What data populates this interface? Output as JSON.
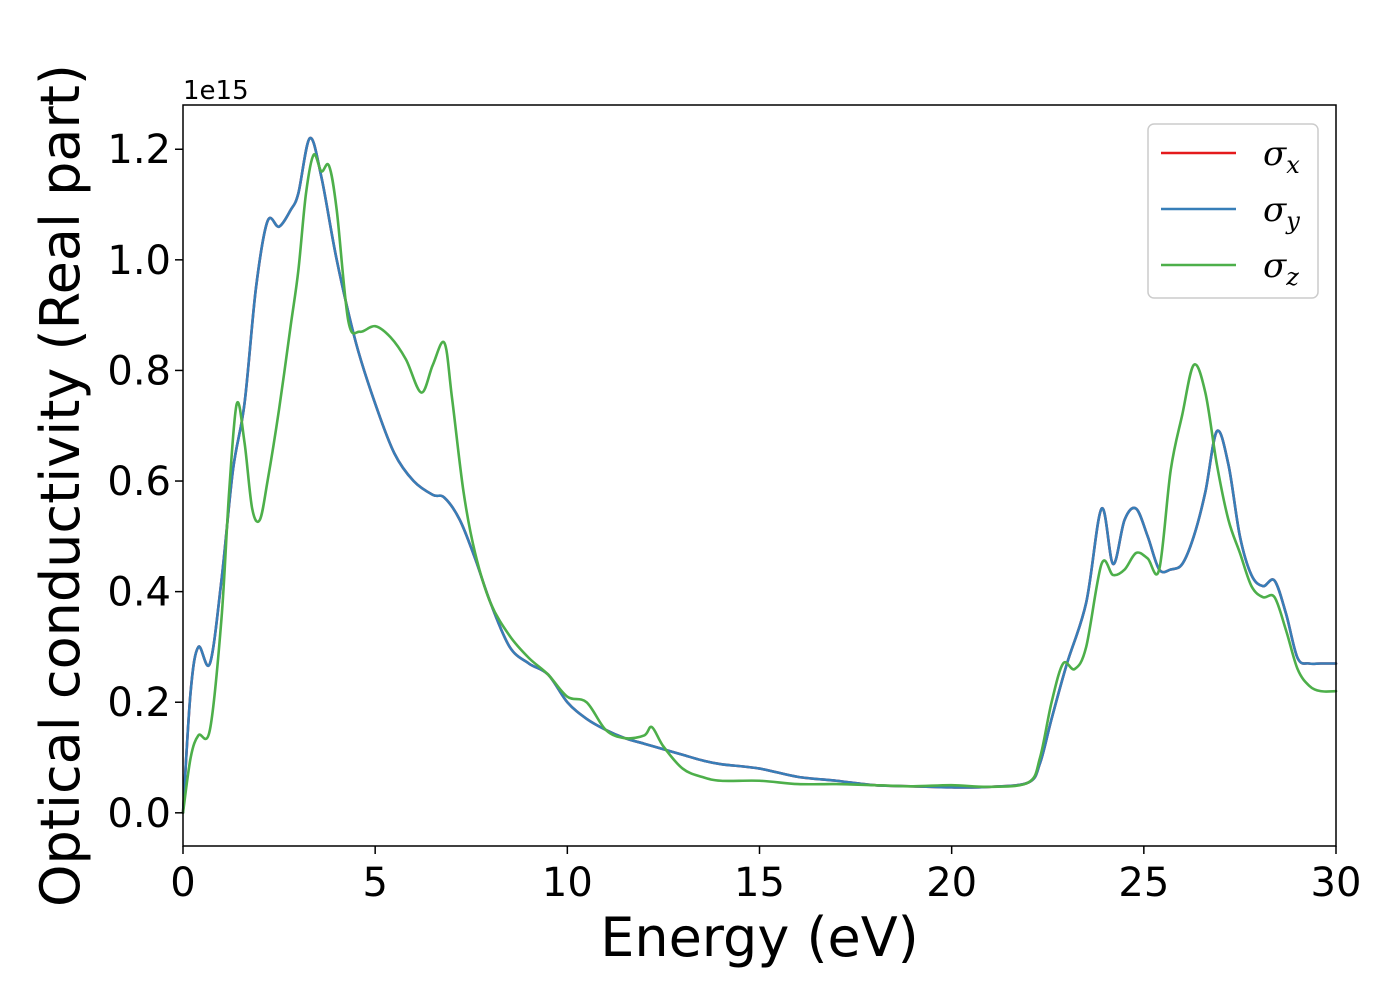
{
  "chart_data": {
    "type": "line",
    "xlabel": "Energy (eV)",
    "ylabel": "Optical conductivity (Real part)",
    "y_offset_text": "1e15",
    "y_scale": 1000000000000000.0,
    "xlim": [
      0,
      30
    ],
    "ylim": [
      -0.06,
      1.28
    ],
    "x_ticks": [
      0,
      5,
      10,
      15,
      20,
      25,
      30
    ],
    "x_tick_labels": [
      "0",
      "5",
      "10",
      "15",
      "20",
      "25",
      "30"
    ],
    "y_ticks": [
      0.0,
      0.2,
      0.4,
      0.6,
      0.8,
      1.0,
      1.2
    ],
    "y_tick_labels": [
      "0.0",
      "0.2",
      "0.4",
      "0.6",
      "0.8",
      "1.0",
      "1.2"
    ],
    "grid": false,
    "legend_position": "top-right",
    "series": [
      {
        "name": "σx",
        "symbol": "σ",
        "subscript": "x",
        "color": "#e41a1c",
        "x": [
          0,
          0.2,
          0.4,
          0.7,
          1.0,
          1.3,
          1.6,
          1.9,
          2.2,
          2.5,
          2.8,
          3.0,
          3.3,
          3.6,
          4.0,
          4.5,
          5.0,
          5.5,
          6.0,
          6.5,
          6.8,
          7.2,
          7.6,
          8.0,
          8.5,
          9.0,
          9.5,
          10.0,
          10.5,
          11.0,
          11.5,
          12.0,
          12.5,
          13.0,
          13.5,
          14.0,
          15.0,
          16.0,
          17.0,
          18.0,
          19.0,
          20.0,
          21.0,
          22.0,
          22.3,
          22.6,
          23.0,
          23.5,
          23.9,
          24.2,
          24.5,
          24.8,
          25.1,
          25.4,
          25.7,
          26.0,
          26.3,
          26.6,
          26.9,
          27.2,
          27.5,
          27.8,
          28.1,
          28.4,
          28.7,
          29.0,
          29.3,
          29.6,
          30.0
        ],
        "y": [
          0.0,
          0.22,
          0.3,
          0.27,
          0.42,
          0.62,
          0.74,
          0.95,
          1.07,
          1.06,
          1.09,
          1.12,
          1.22,
          1.15,
          1.0,
          0.85,
          0.74,
          0.65,
          0.6,
          0.575,
          0.57,
          0.53,
          0.46,
          0.38,
          0.3,
          0.27,
          0.25,
          0.2,
          0.17,
          0.15,
          0.135,
          0.125,
          0.115,
          0.105,
          0.095,
          0.088,
          0.08,
          0.065,
          0.058,
          0.05,
          0.048,
          0.046,
          0.047,
          0.055,
          0.09,
          0.17,
          0.27,
          0.38,
          0.55,
          0.45,
          0.53,
          0.55,
          0.5,
          0.44,
          0.44,
          0.45,
          0.5,
          0.58,
          0.69,
          0.63,
          0.5,
          0.43,
          0.41,
          0.42,
          0.36,
          0.28,
          0.27,
          0.27,
          0.27
        ]
      },
      {
        "name": "σy",
        "symbol": "σ",
        "subscript": "y",
        "color": "#377eb8",
        "x": [
          0,
          0.2,
          0.4,
          0.7,
          1.0,
          1.3,
          1.6,
          1.9,
          2.2,
          2.5,
          2.8,
          3.0,
          3.3,
          3.6,
          4.0,
          4.5,
          5.0,
          5.5,
          6.0,
          6.5,
          6.8,
          7.2,
          7.6,
          8.0,
          8.5,
          9.0,
          9.5,
          10.0,
          10.5,
          11.0,
          11.5,
          12.0,
          12.5,
          13.0,
          13.5,
          14.0,
          15.0,
          16.0,
          17.0,
          18.0,
          19.0,
          20.0,
          21.0,
          22.0,
          22.3,
          22.6,
          23.0,
          23.5,
          23.9,
          24.2,
          24.5,
          24.8,
          25.1,
          25.4,
          25.7,
          26.0,
          26.3,
          26.6,
          26.9,
          27.2,
          27.5,
          27.8,
          28.1,
          28.4,
          28.7,
          29.0,
          29.3,
          29.6,
          30.0
        ],
        "y": [
          0.0,
          0.22,
          0.3,
          0.27,
          0.42,
          0.62,
          0.74,
          0.95,
          1.07,
          1.06,
          1.09,
          1.12,
          1.22,
          1.15,
          1.0,
          0.85,
          0.74,
          0.65,
          0.6,
          0.575,
          0.57,
          0.53,
          0.46,
          0.38,
          0.3,
          0.27,
          0.25,
          0.2,
          0.17,
          0.15,
          0.135,
          0.125,
          0.115,
          0.105,
          0.095,
          0.088,
          0.08,
          0.065,
          0.058,
          0.05,
          0.048,
          0.046,
          0.047,
          0.055,
          0.09,
          0.17,
          0.27,
          0.38,
          0.55,
          0.45,
          0.53,
          0.55,
          0.5,
          0.44,
          0.44,
          0.45,
          0.5,
          0.58,
          0.69,
          0.63,
          0.5,
          0.43,
          0.41,
          0.42,
          0.36,
          0.28,
          0.27,
          0.27,
          0.27
        ]
      },
      {
        "name": "σz",
        "symbol": "σ",
        "subscript": "z",
        "color": "#4daf4a",
        "x": [
          0,
          0.2,
          0.4,
          0.7,
          1.0,
          1.2,
          1.4,
          1.6,
          1.8,
          2.0,
          2.2,
          2.5,
          2.8,
          3.0,
          3.2,
          3.4,
          3.6,
          3.8,
          4.0,
          4.3,
          4.6,
          5.0,
          5.4,
          5.8,
          6.2,
          6.5,
          6.8,
          7.0,
          7.3,
          7.6,
          8.0,
          8.5,
          9.0,
          9.5,
          10.0,
          10.5,
          11.0,
          11.5,
          12.0,
          12.2,
          12.5,
          13.0,
          13.5,
          14.0,
          15.0,
          16.0,
          17.0,
          18.0,
          19.0,
          20.0,
          21.0,
          22.0,
          22.3,
          22.6,
          22.9,
          23.2,
          23.5,
          23.9,
          24.2,
          24.5,
          24.8,
          25.1,
          25.4,
          25.7,
          26.0,
          26.3,
          26.6,
          26.9,
          27.2,
          27.5,
          27.8,
          28.1,
          28.4,
          28.7,
          29.0,
          29.3,
          29.6,
          30.0
        ],
        "y": [
          0.0,
          0.1,
          0.14,
          0.15,
          0.35,
          0.58,
          0.74,
          0.67,
          0.55,
          0.53,
          0.6,
          0.73,
          0.88,
          0.98,
          1.12,
          1.19,
          1.16,
          1.17,
          1.09,
          0.89,
          0.87,
          0.88,
          0.86,
          0.82,
          0.76,
          0.81,
          0.85,
          0.75,
          0.58,
          0.47,
          0.38,
          0.32,
          0.28,
          0.25,
          0.21,
          0.2,
          0.15,
          0.135,
          0.14,
          0.155,
          0.12,
          0.08,
          0.065,
          0.058,
          0.058,
          0.052,
          0.052,
          0.05,
          0.048,
          0.05,
          0.047,
          0.055,
          0.1,
          0.2,
          0.27,
          0.26,
          0.3,
          0.45,
          0.43,
          0.44,
          0.47,
          0.46,
          0.44,
          0.62,
          0.72,
          0.81,
          0.76,
          0.63,
          0.53,
          0.47,
          0.41,
          0.39,
          0.39,
          0.33,
          0.26,
          0.23,
          0.22,
          0.22
        ]
      }
    ]
  }
}
